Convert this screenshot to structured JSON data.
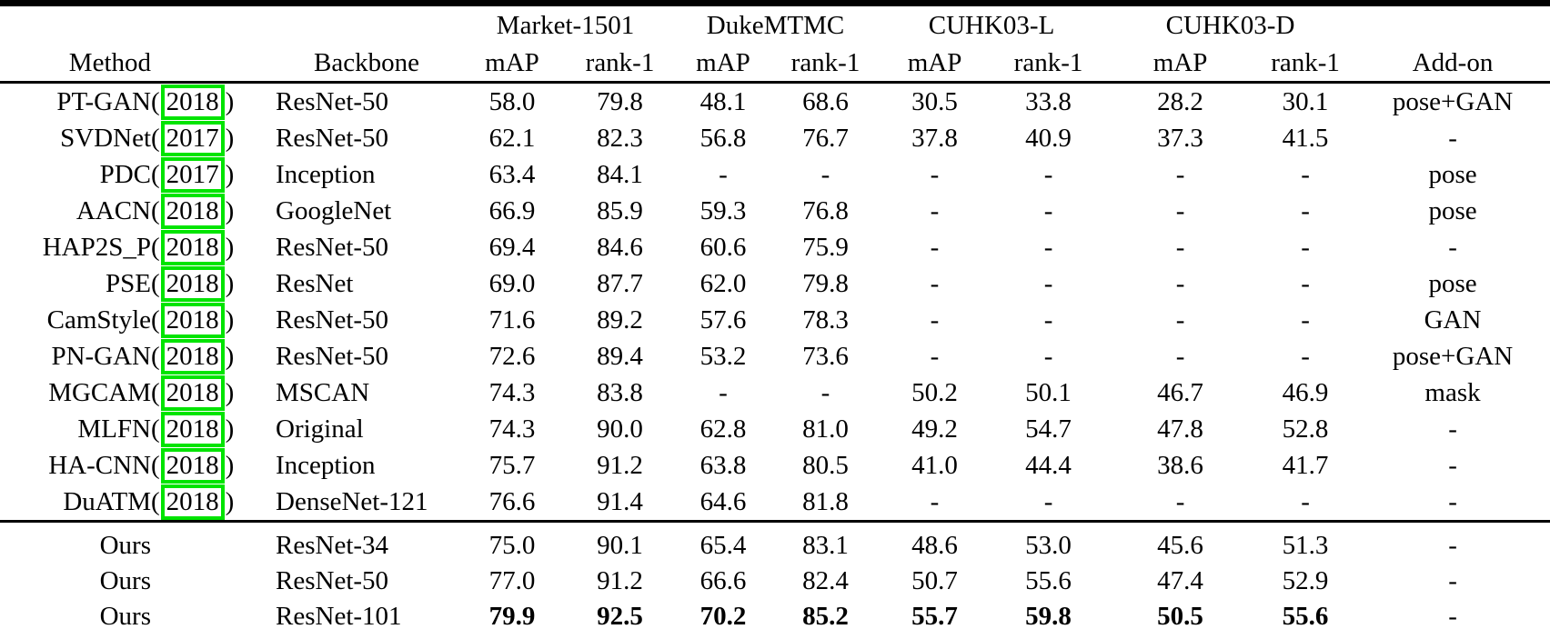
{
  "page": {
    "background": "#ffffff"
  },
  "table": {
    "citation_box_color": "#00e400",
    "group_headers": [
      {
        "label": "Market-1501"
      },
      {
        "label": "DukeMTMC"
      },
      {
        "label": "CUHK03-L"
      },
      {
        "label": "CUHK03-D"
      }
    ],
    "column_headers": {
      "method": "Method",
      "backbone": "Backbone",
      "map": "mAP",
      "rank1": "rank-1",
      "addon": "Add-on"
    },
    "rows": [
      {
        "method": "PT-GAN",
        "year": "2018",
        "backbone": "ResNet-50",
        "values": [
          "58.0",
          "79.8",
          "48.1",
          "68.6",
          "30.5",
          "33.8",
          "28.2",
          "30.1"
        ],
        "addon": "pose+GAN"
      },
      {
        "method": "SVDNet",
        "year": "2017",
        "backbone": "ResNet-50",
        "values": [
          "62.1",
          "82.3",
          "56.8",
          "76.7",
          "37.8",
          "40.9",
          "37.3",
          "41.5"
        ],
        "addon": "-"
      },
      {
        "method": "PDC",
        "year": "2017",
        "backbone": "Inception",
        "values": [
          "63.4",
          "84.1",
          "-",
          "-",
          "-",
          "-",
          "-",
          "-"
        ],
        "addon": "pose"
      },
      {
        "method": "AACN",
        "year": "2018",
        "backbone": "GoogleNet",
        "values": [
          "66.9",
          "85.9",
          "59.3",
          "76.8",
          "-",
          "-",
          "-",
          "-"
        ],
        "addon": "pose"
      },
      {
        "method": "HAP2S_P",
        "year": "2018",
        "backbone": "ResNet-50",
        "values": [
          "69.4",
          "84.6",
          "60.6",
          "75.9",
          "-",
          "-",
          "-",
          "-"
        ],
        "addon": "-"
      },
      {
        "method": "PSE",
        "year": "2018",
        "backbone": "ResNet",
        "values": [
          "69.0",
          "87.7",
          "62.0",
          "79.8",
          "-",
          "-",
          "-",
          "-"
        ],
        "addon": "pose"
      },
      {
        "method": "CamStyle",
        "year": "2018",
        "backbone": "ResNet-50",
        "values": [
          "71.6",
          "89.2",
          "57.6",
          "78.3",
          "-",
          "-",
          "-",
          "-"
        ],
        "addon": "GAN"
      },
      {
        "method": "PN-GAN",
        "year": "2018",
        "backbone": "ResNet-50",
        "values": [
          "72.6",
          "89.4",
          "53.2",
          "73.6",
          "-",
          "-",
          "-",
          "-"
        ],
        "addon": "pose+GAN"
      },
      {
        "method": "MGCAM",
        "year": "2018",
        "backbone": "MSCAN",
        "values": [
          "74.3",
          "83.8",
          "-",
          "-",
          "50.2",
          "50.1",
          "46.7",
          "46.9"
        ],
        "addon": "mask"
      },
      {
        "method": "MLFN",
        "year": "2018",
        "backbone": "Original",
        "values": [
          "74.3",
          "90.0",
          "62.8",
          "81.0",
          "49.2",
          "54.7",
          "47.8",
          "52.8"
        ],
        "addon": "-"
      },
      {
        "method": "HA-CNN",
        "year": "2018",
        "backbone": "Inception",
        "values": [
          "75.7",
          "91.2",
          "63.8",
          "80.5",
          "41.0",
          "44.4",
          "38.6",
          "41.7"
        ],
        "addon": "-"
      },
      {
        "method": "DuATM",
        "year": "2018",
        "backbone": "DenseNet-121",
        "values": [
          "76.6",
          "91.4",
          "64.6",
          "81.8",
          "-",
          "-",
          "-",
          "-"
        ],
        "addon": "-"
      }
    ],
    "ours_rows": [
      {
        "method": "Ours",
        "backbone": "ResNet-34",
        "values": [
          "75.0",
          "90.1",
          "65.4",
          "83.1",
          "48.6",
          "53.0",
          "45.6",
          "51.3"
        ],
        "addon": "-",
        "bold": false
      },
      {
        "method": "Ours",
        "backbone": "ResNet-50",
        "values": [
          "77.0",
          "91.2",
          "66.6",
          "82.4",
          "50.7",
          "55.6",
          "47.4",
          "52.9"
        ],
        "addon": "-",
        "bold": false
      },
      {
        "method": "Ours",
        "backbone": "ResNet-101",
        "values": [
          "79.9",
          "92.5",
          "70.2",
          "85.2",
          "55.7",
          "59.8",
          "50.5",
          "55.6"
        ],
        "addon": "-",
        "bold": true
      }
    ]
  }
}
